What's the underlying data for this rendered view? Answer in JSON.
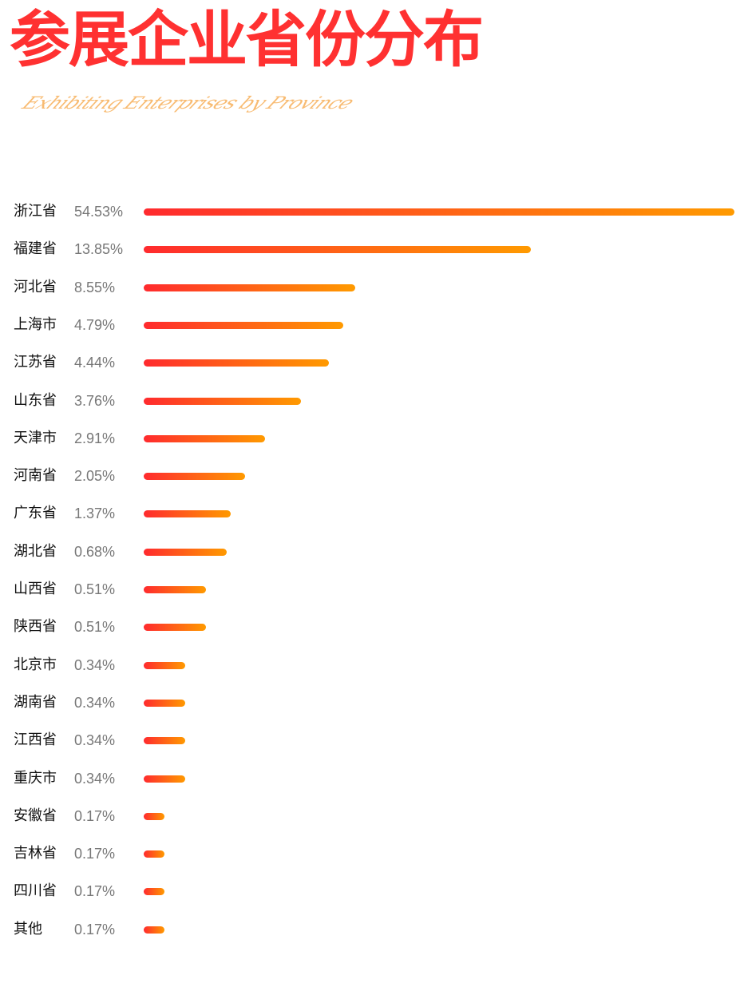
{
  "chart_data": {
    "type": "bar",
    "orientation": "horizontal",
    "title": "参展企业省份分布",
    "subtitle": "Exhibiting Enterprises by Province",
    "categories": [
      "浙江省",
      "福建省",
      "河北省",
      "上海市",
      "江苏省",
      "山东省",
      "天津市",
      "河南省",
      "广东省",
      "湖北省",
      "山西省",
      "陕西省",
      "北京市",
      "湖南省",
      "江西省",
      "重庆市",
      "安徽省",
      "吉林省",
      "四川省",
      "其他"
    ],
    "values": [
      54.53,
      13.85,
      8.55,
      4.79,
      4.44,
      3.76,
      2.91,
      2.05,
      1.37,
      0.68,
      0.51,
      0.51,
      0.34,
      0.34,
      0.34,
      0.34,
      0.17,
      0.17,
      0.17,
      0.17
    ],
    "labels": [
      "54.53%",
      "13.85%",
      "8.55%",
      "4.79%",
      "4.44%",
      "3.76%",
      "2.91%",
      "2.05%",
      "1.37%",
      "0.68%",
      "0.51%",
      "0.51%",
      "0.34%",
      "0.34%",
      "0.34%",
      "0.34%",
      "0.17%",
      "0.17%",
      "0.17%",
      "0.17%"
    ],
    "unit": "%",
    "colors": {
      "title": "#ff3131",
      "bar_start": "#ff2a2e",
      "bar_end": "#ff9a00",
      "subtitle": "#f7b05a"
    },
    "grid": false
  }
}
